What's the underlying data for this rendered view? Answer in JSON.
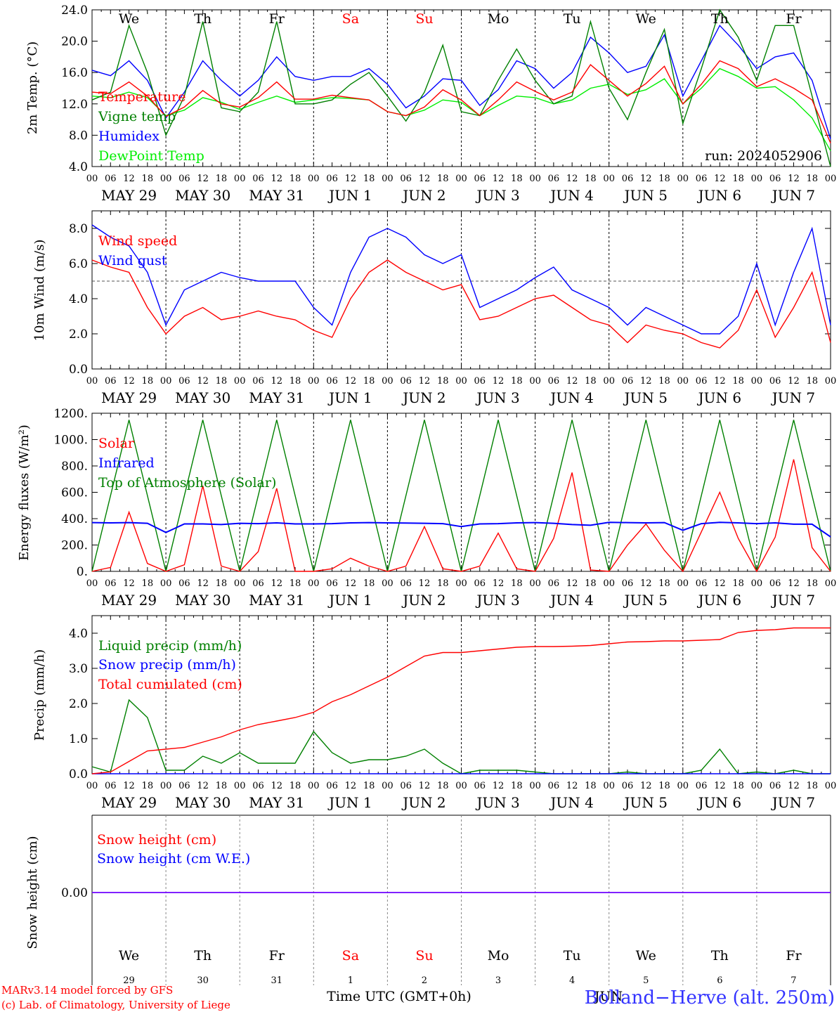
{
  "colors": {
    "temperature": "#ff0000",
    "vigne": "#008000",
    "humidex": "#0000ff",
    "dewpoint": "#00ee00",
    "wind_speed": "#ff0000",
    "wind_gust": "#0000ff",
    "solar": "#ff0000",
    "infrared": "#0000ff",
    "toa": "#008000",
    "liquid": "#008000",
    "snow_precip": "#0000ff",
    "cumul": "#ff0000",
    "snow_height": "#ff0000",
    "snow_we": "#0000ff",
    "weekend": "#ff0000",
    "text": "#000000"
  },
  "days": [
    {
      "abbr": "We",
      "date": "MAY 29",
      "num": "29",
      "weekend": false
    },
    {
      "abbr": "Th",
      "date": "MAY 30",
      "num": "30",
      "weekend": false
    },
    {
      "abbr": "Fr",
      "date": "MAY 31",
      "num": "31",
      "weekend": false
    },
    {
      "abbr": "Sa",
      "date": "JUN  1",
      "num": "1",
      "weekend": true
    },
    {
      "abbr": "Su",
      "date": "JUN  2",
      "num": "2",
      "weekend": true
    },
    {
      "abbr": "Mo",
      "date": "JUN  3",
      "num": "3",
      "weekend": false
    },
    {
      "abbr": "Tu",
      "date": "JUN  4",
      "num": "4",
      "weekend": false
    },
    {
      "abbr": "We",
      "date": "JUN  5",
      "num": "5",
      "weekend": false
    },
    {
      "abbr": "Th",
      "date": "JUN  6",
      "num": "6",
      "weekend": false
    },
    {
      "abbr": "Fr",
      "date": "JUN  7",
      "num": "7",
      "weekend": false
    }
  ],
  "hour_ticks": [
    "00",
    "06",
    "12",
    "18"
  ],
  "run_label": "run: 2024052906",
  "footer": {
    "model": "MARv3.14 model forced by GFS",
    "lab": "(c) Lab. of Climatology, University of Liege",
    "xlabel": "Time UTC (GMT+0h)",
    "month_label": "JUN",
    "station": "Bolland−Herve (alt. 250m)"
  },
  "chart_data": [
    {
      "type": "line",
      "ylabel": "2m Temp. (°C)",
      "ylim": [
        4,
        24
      ],
      "yticks": [
        "4.0",
        "8.0",
        "12.0",
        "16.0",
        "20.0",
        "24.0"
      ],
      "x_unit": "hours since 2024-05-29 00 UTC",
      "x": [
        0,
        6,
        12,
        18,
        24,
        30,
        36,
        42,
        48,
        54,
        60,
        66,
        72,
        78,
        84,
        90,
        96,
        102,
        108,
        114,
        120,
        126,
        132,
        138,
        144,
        150,
        156,
        162,
        168,
        174,
        180,
        186,
        192,
        198,
        204,
        210,
        216,
        222,
        228,
        234,
        240
      ],
      "series": [
        {
          "name": "Temperature",
          "color_key": "temperature",
          "values": [
            13.5,
            13.3,
            14.8,
            13.0,
            10.4,
            11.6,
            13.7,
            12.0,
            11.6,
            12.8,
            14.8,
            12.6,
            12.6,
            13.1,
            12.8,
            12.5,
            11.0,
            10.5,
            11.6,
            13.8,
            12.5,
            10.5,
            12.5,
            14.8,
            13.6,
            12.5,
            13.5,
            17.0,
            15.0,
            13.0,
            14.6,
            16.8,
            12.0,
            14.5,
            17.5,
            16.5,
            14.2,
            15.2,
            14.0,
            12.5,
            7.0
          ]
        },
        {
          "name": "Vigne temp",
          "color_key": "vigne",
          "values": [
            12.5,
            13.5,
            22.0,
            16.0,
            8.0,
            13.0,
            22.5,
            11.5,
            11.0,
            13.5,
            22.5,
            12.0,
            12.0,
            12.5,
            14.5,
            16.0,
            13.0,
            9.8,
            13.5,
            19.5,
            11.0,
            10.5,
            15.0,
            19.0,
            15.0,
            12.0,
            13.0,
            22.5,
            14.0,
            10.0,
            16.0,
            21.5,
            9.5,
            16.5,
            24.0,
            20.5,
            15.0,
            22.0,
            22.0,
            13.0,
            4.0
          ]
        },
        {
          "name": "Humidex",
          "color_key": "humidex",
          "values": [
            16.3,
            15.6,
            17.5,
            15.0,
            10.2,
            13.5,
            17.5,
            15.0,
            13.0,
            15.0,
            18.0,
            15.5,
            15.0,
            15.5,
            15.5,
            16.5,
            14.5,
            11.5,
            13.0,
            15.2,
            15.0,
            11.8,
            13.8,
            17.5,
            16.5,
            14.0,
            16.0,
            20.5,
            18.5,
            16.0,
            16.8,
            20.8,
            13.0,
            17.5,
            22.0,
            19.5,
            16.5,
            18.0,
            18.5,
            15.0,
            7.5
          ]
        },
        {
          "name": "DewPoint Temp",
          "color_key": "dewpoint",
          "values": [
            13.0,
            12.8,
            13.5,
            12.8,
            10.5,
            11.2,
            12.8,
            12.2,
            11.3,
            12.2,
            13.0,
            12.2,
            12.5,
            12.8,
            12.7,
            12.5,
            11.0,
            10.5,
            11.2,
            12.5,
            12.2,
            10.5,
            11.8,
            13.0,
            12.8,
            12.0,
            12.5,
            14.0,
            14.5,
            13.2,
            13.8,
            15.2,
            12.0,
            14.0,
            16.5,
            15.5,
            14.0,
            14.2,
            12.5,
            10.2,
            6.0
          ]
        }
      ]
    },
    {
      "type": "line",
      "ylabel": "10m Wind (m/s)",
      "ylim": [
        0,
        9
      ],
      "reference_line": 5,
      "yticks": [
        "0.0",
        "2.0",
        "4.0",
        "6.0",
        "8.0"
      ],
      "x_unit": "hours since 2024-05-29 00 UTC",
      "x": [
        0,
        6,
        12,
        18,
        24,
        30,
        36,
        42,
        48,
        54,
        60,
        66,
        72,
        78,
        84,
        90,
        96,
        102,
        108,
        114,
        120,
        126,
        132,
        138,
        144,
        150,
        156,
        162,
        168,
        174,
        180,
        186,
        192,
        198,
        204,
        210,
        216,
        222,
        228,
        234,
        240
      ],
      "series": [
        {
          "name": "Wind speed",
          "color_key": "wind_speed",
          "values": [
            6.2,
            5.8,
            5.5,
            3.5,
            2.0,
            3.0,
            3.5,
            2.8,
            3.0,
            3.3,
            3.0,
            2.8,
            2.2,
            1.8,
            4.0,
            5.5,
            6.2,
            5.5,
            5.0,
            4.5,
            4.8,
            2.8,
            3.0,
            3.5,
            4.0,
            4.2,
            3.5,
            2.8,
            2.5,
            1.5,
            2.5,
            2.2,
            2.0,
            1.5,
            1.2,
            2.2,
            4.5,
            1.8,
            3.5,
            5.5,
            1.5
          ]
        },
        {
          "name": "Wind gust",
          "color_key": "wind_gust",
          "values": [
            8.2,
            7.5,
            7.0,
            5.5,
            2.5,
            4.5,
            5.0,
            5.5,
            5.2,
            5.0,
            5.0,
            5.0,
            3.5,
            2.5,
            5.5,
            7.5,
            8.0,
            7.5,
            6.5,
            6.0,
            6.5,
            3.5,
            4.0,
            4.5,
            5.2,
            5.8,
            4.5,
            4.0,
            3.5,
            2.5,
            3.5,
            3.0,
            2.5,
            2.0,
            2.0,
            3.0,
            6.0,
            2.5,
            5.5,
            8.0,
            2.5
          ]
        }
      ]
    },
    {
      "type": "line",
      "ylabel": "Energy fluxes (W/m²)",
      "ylim": [
        0,
        1200
      ],
      "yticks": [
        "0.",
        "200.",
        "400.",
        "600.",
        "800.",
        "1000.",
        "1200."
      ],
      "x_unit": "hours since 2024-05-29 00 UTC",
      "x": [
        0,
        6,
        12,
        18,
        24,
        30,
        36,
        42,
        48,
        54,
        60,
        66,
        72,
        78,
        84,
        90,
        96,
        102,
        108,
        114,
        120,
        126,
        132,
        138,
        144,
        150,
        156,
        162,
        168,
        174,
        180,
        186,
        192,
        198,
        204,
        210,
        216,
        222,
        228,
        234,
        240
      ],
      "series": [
        {
          "name": "Solar",
          "color_key": "solar",
          "values": [
            0,
            30,
            450,
            60,
            0,
            50,
            650,
            40,
            0,
            150,
            630,
            0,
            0,
            20,
            100,
            40,
            0,
            40,
            340,
            20,
            0,
            40,
            290,
            20,
            0,
            250,
            750,
            10,
            0,
            200,
            360,
            160,
            0,
            300,
            600,
            250,
            0,
            260,
            850,
            180,
            0
          ]
        },
        {
          "name": "Infrared",
          "color_key": "infrared",
          "values": [
            370,
            368,
            370,
            365,
            295,
            360,
            360,
            355,
            365,
            362,
            368,
            360,
            360,
            362,
            368,
            370,
            368,
            367,
            365,
            362,
            340,
            360,
            362,
            368,
            370,
            365,
            355,
            350,
            372,
            370,
            368,
            370,
            312,
            362,
            372,
            368,
            362,
            368,
            358,
            358,
            262
          ]
        },
        {
          "name": "Top of Atmosphere (Solar)",
          "color_key": "toa",
          "values": [
            0,
            575,
            1150,
            575,
            0,
            575,
            1150,
            575,
            0,
            575,
            1150,
            575,
            0,
            575,
            1150,
            575,
            0,
            575,
            1150,
            575,
            0,
            575,
            1150,
            575,
            0,
            575,
            1150,
            575,
            0,
            575,
            1150,
            575,
            0,
            575,
            1150,
            575,
            0,
            575,
            1150,
            575,
            0
          ]
        }
      ]
    },
    {
      "type": "line",
      "ylabel": "Precip (mm/h)",
      "ylim": [
        0,
        4.5
      ],
      "yticks": [
        "0.0",
        "1.0",
        "2.0",
        "3.0",
        "4.0"
      ],
      "x_unit": "hours since 2024-05-29 00 UTC",
      "x": [
        0,
        6,
        12,
        18,
        24,
        30,
        36,
        42,
        48,
        54,
        60,
        66,
        72,
        78,
        84,
        90,
        96,
        102,
        108,
        114,
        120,
        126,
        132,
        138,
        144,
        150,
        156,
        162,
        168,
        174,
        180,
        186,
        192,
        198,
        204,
        210,
        216,
        222,
        228,
        234,
        240
      ],
      "series": [
        {
          "name": "Liquid precip (mm/h)",
          "color_key": "liquid",
          "values": [
            0.2,
            0.05,
            2.1,
            1.6,
            0.1,
            0.1,
            0.5,
            0.3,
            0.6,
            0.3,
            0.3,
            0.3,
            1.2,
            0.6,
            0.3,
            0.4,
            0.4,
            0.5,
            0.7,
            0.3,
            0.0,
            0.1,
            0.1,
            0.1,
            0.05,
            0.0,
            0.0,
            0.0,
            0.0,
            0.05,
            0.0,
            0.0,
            0.0,
            0.1,
            0.7,
            0.0,
            0.05,
            0.0,
            0.1,
            0.0,
            0.0
          ]
        },
        {
          "name": "Snow precip (mm/h)",
          "color_key": "snow_precip",
          "values": [
            0,
            0,
            0,
            0,
            0,
            0,
            0,
            0,
            0,
            0,
            0,
            0,
            0,
            0,
            0,
            0,
            0,
            0,
            0,
            0,
            0,
            0,
            0,
            0,
            0,
            0,
            0,
            0,
            0,
            0,
            0,
            0,
            0,
            0,
            0,
            0,
            0,
            0,
            0,
            0,
            0
          ]
        },
        {
          "name": "Total cumulated (cm)",
          "color_key": "cumul",
          "values": [
            0.0,
            0.05,
            0.35,
            0.65,
            0.7,
            0.75,
            0.9,
            1.05,
            1.25,
            1.4,
            1.5,
            1.6,
            1.75,
            2.05,
            2.25,
            2.5,
            2.75,
            3.05,
            3.35,
            3.45,
            3.45,
            3.5,
            3.55,
            3.6,
            3.62,
            3.62,
            3.63,
            3.65,
            3.7,
            3.75,
            3.76,
            3.78,
            3.78,
            3.8,
            3.82,
            4.02,
            4.08,
            4.1,
            4.15,
            4.15,
            4.15
          ]
        }
      ]
    },
    {
      "type": "line",
      "ylabel": "Snow height (cm)",
      "ylim": [
        -1,
        1
      ],
      "yticks": [
        "0.00"
      ],
      "x_unit": "hours since 2024-05-29 00 UTC",
      "x": [
        0,
        240
      ],
      "series": [
        {
          "name": "Snow height (cm)",
          "color_key": "snow_height",
          "values": [
            0,
            0
          ]
        },
        {
          "name": "Snow height (cm W.E.)",
          "color_key": "snow_we",
          "values": [
            0,
            0
          ]
        }
      ]
    }
  ]
}
